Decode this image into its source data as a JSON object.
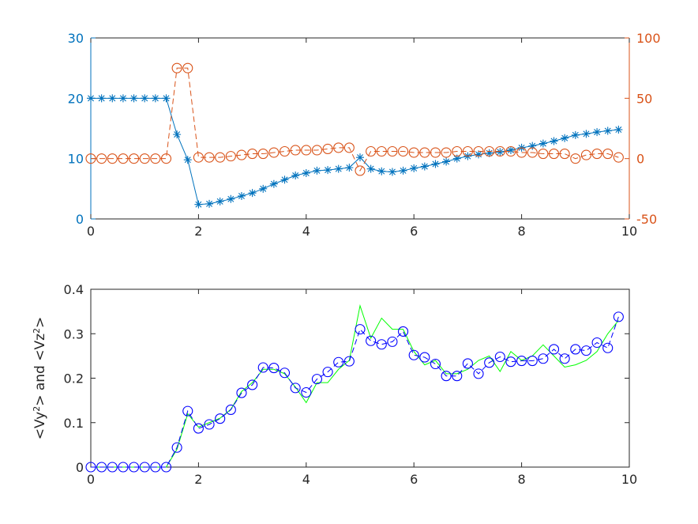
{
  "chart_data": [
    {
      "type": "line",
      "title": "",
      "xlabel": "",
      "xlim": [
        0,
        10
      ],
      "xticks": [
        "0",
        "2",
        "4",
        "6",
        "8",
        "10"
      ],
      "y_left": {
        "label": "",
        "lim": [
          0,
          30
        ],
        "ticks": [
          "0",
          "10",
          "20",
          "30"
        ],
        "color": "#0072BD"
      },
      "y_right": {
        "label": "",
        "lim": [
          -50,
          100
        ],
        "ticks": [
          "-50",
          "0",
          "50",
          "100"
        ],
        "color": "#D95319"
      },
      "grid": false,
      "series": [
        {
          "axis": "left",
          "color": "#0072BD",
          "marker": "asterisk",
          "line": "solid",
          "x": [
            0,
            0.2,
            0.4,
            0.6,
            0.8,
            1.0,
            1.2,
            1.4,
            1.6,
            1.8,
            2.0,
            2.2,
            2.4,
            2.6,
            2.8,
            3.0,
            3.2,
            3.4,
            3.6,
            3.8,
            4.0,
            4.2,
            4.4,
            4.6,
            4.8,
            5.0,
            5.2,
            5.4,
            5.6,
            5.8,
            6.0,
            6.2,
            6.4,
            6.6,
            6.8,
            7.0,
            7.2,
            7.4,
            7.6,
            7.8,
            8.0,
            8.2,
            8.4,
            8.6,
            8.8,
            9.0,
            9.2,
            9.4,
            9.6,
            9.8
          ],
          "values": [
            20,
            20,
            20,
            20,
            20,
            20,
            20,
            20,
            14,
            9.8,
            2.4,
            2.5,
            2.9,
            3.3,
            3.8,
            4.3,
            5.0,
            5.8,
            6.5,
            7.2,
            7.6,
            8.0,
            8.1,
            8.3,
            8.5,
            10.2,
            8.3,
            7.9,
            7.8,
            8.0,
            8.4,
            8.7,
            9.1,
            9.5,
            10.0,
            10.4,
            10.7,
            10.9,
            11.1,
            11.4,
            11.8,
            12.1,
            12.5,
            12.9,
            13.4,
            13.9,
            14.1,
            14.4,
            14.6,
            14.8
          ]
        },
        {
          "axis": "right",
          "color": "#D95319",
          "marker": "circle",
          "line": "dashed",
          "x": [
            0,
            0.2,
            0.4,
            0.6,
            0.8,
            1.0,
            1.2,
            1.4,
            1.6,
            1.8,
            2.0,
            2.2,
            2.4,
            2.6,
            2.8,
            3.0,
            3.2,
            3.4,
            3.6,
            3.8,
            4.0,
            4.2,
            4.4,
            4.6,
            4.8,
            5.0,
            5.2,
            5.4,
            5.6,
            5.8,
            6.0,
            6.2,
            6.4,
            6.6,
            6.8,
            7.0,
            7.2,
            7.4,
            7.6,
            7.8,
            8.0,
            8.2,
            8.4,
            8.6,
            8.8,
            9.0,
            9.2,
            9.4,
            9.6,
            9.8
          ],
          "values": [
            0,
            0,
            0,
            0,
            0,
            0,
            0,
            0,
            75,
            75,
            1,
            1,
            1,
            2,
            3,
            4,
            4,
            5,
            6,
            7,
            7,
            7,
            8,
            9,
            9,
            -10,
            6,
            6,
            6,
            6,
            5,
            5,
            5,
            5,
            6,
            6,
            6,
            6,
            6,
            6,
            5,
            5,
            4,
            4,
            4,
            0,
            3,
            4,
            4,
            1
          ]
        }
      ]
    },
    {
      "type": "line",
      "title": "",
      "xlabel": "",
      "ylabel": "<Vy²> and <Vz²>",
      "xlim": [
        0,
        10
      ],
      "ylim": [
        0,
        0.4
      ],
      "xticks": [
        "0",
        "2",
        "4",
        "6",
        "8",
        "10"
      ],
      "yticks": [
        "0",
        "0.1",
        "0.2",
        "0.3",
        "0.4"
      ],
      "grid": false,
      "series": [
        {
          "color": "#00FF00",
          "marker": "none",
          "line": "solid",
          "x": [
            0,
            0.2,
            0.4,
            0.6,
            0.8,
            1.0,
            1.2,
            1.4,
            1.6,
            1.8,
            2.0,
            2.2,
            2.4,
            2.6,
            2.8,
            3.0,
            3.2,
            3.4,
            3.6,
            3.8,
            4.0,
            4.2,
            4.4,
            4.6,
            4.8,
            5.0,
            5.2,
            5.4,
            5.6,
            5.8,
            6.0,
            6.2,
            6.4,
            6.6,
            6.8,
            7.0,
            7.2,
            7.4,
            7.6,
            7.8,
            8.0,
            8.2,
            8.4,
            8.6,
            8.8,
            9.0,
            9.2,
            9.4,
            9.6,
            9.8
          ],
          "values": [
            0,
            0,
            0,
            0,
            0,
            0,
            0,
            0,
            0.04,
            0.12,
            0.09,
            0.1,
            0.11,
            0.13,
            0.17,
            0.19,
            0.22,
            0.22,
            0.21,
            0.18,
            0.145,
            0.19,
            0.19,
            0.22,
            0.24,
            0.363,
            0.29,
            0.335,
            0.31,
            0.31,
            0.26,
            0.23,
            0.24,
            0.21,
            0.21,
            0.22,
            0.24,
            0.25,
            0.215,
            0.26,
            0.24,
            0.25,
            0.275,
            0.25,
            0.225,
            0.23,
            0.24,
            0.26,
            0.3,
            0.33
          ]
        },
        {
          "color": "#0000FF",
          "marker": "circle",
          "line": "dashed",
          "x": [
            0,
            0.2,
            0.4,
            0.6,
            0.8,
            1.0,
            1.2,
            1.4,
            1.6,
            1.8,
            2.0,
            2.2,
            2.4,
            2.6,
            2.8,
            3.0,
            3.2,
            3.4,
            3.6,
            3.8,
            4.0,
            4.2,
            4.4,
            4.6,
            4.8,
            5.0,
            5.2,
            5.4,
            5.6,
            5.8,
            6.0,
            6.2,
            6.4,
            6.6,
            6.8,
            7.0,
            7.2,
            7.4,
            7.6,
            7.8,
            8.0,
            8.2,
            8.4,
            8.6,
            8.8,
            9.0,
            9.2,
            9.4,
            9.6,
            9.8
          ],
          "values": [
            0,
            0,
            0,
            0,
            0,
            0,
            0,
            0,
            0.044,
            0.126,
            0.087,
            0.096,
            0.109,
            0.129,
            0.167,
            0.185,
            0.224,
            0.223,
            0.212,
            0.178,
            0.168,
            0.198,
            0.214,
            0.236,
            0.238,
            0.31,
            0.284,
            0.276,
            0.282,
            0.305,
            0.252,
            0.247,
            0.232,
            0.205,
            0.205,
            0.233,
            0.21,
            0.235,
            0.248,
            0.237,
            0.239,
            0.239,
            0.244,
            0.265,
            0.244,
            0.265,
            0.262,
            0.28,
            0.268,
            0.338
          ]
        }
      ]
    }
  ]
}
